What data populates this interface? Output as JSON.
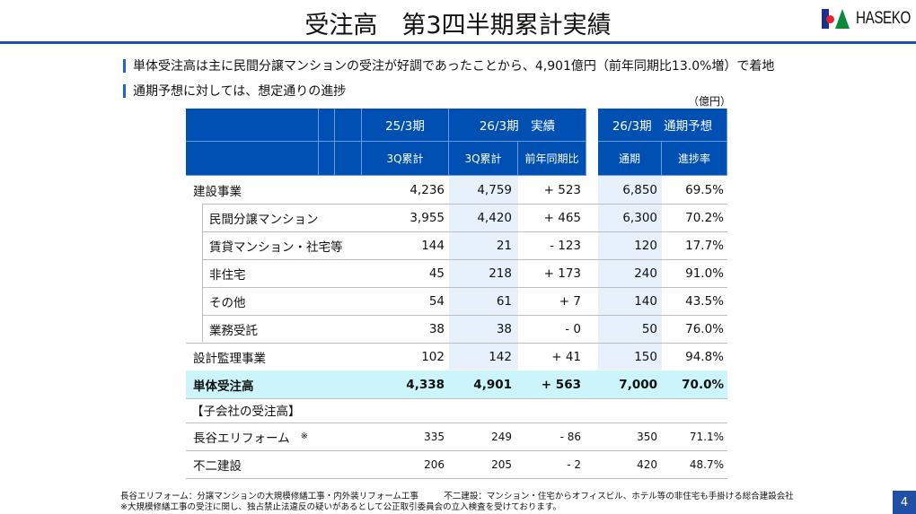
{
  "title": "受注高　第3四半期累計実績",
  "logo": {
    "text": "HASEKO"
  },
  "bullets": [
    "単体受注高は主に民間分譲マンションの受注が好調であったことから、4,901億円（前年同期比13.0%増）で着地",
    "通期予想に対しては、想定通りの進捗"
  ],
  "unit": "（億円）",
  "header": {
    "g1": "25/3期",
    "g2": "26/3期　実績",
    "g3": "26/3期　通期予想",
    "c1": "3Q累計",
    "c2": "3Q累計",
    "c3": "前年同期比",
    "c4": "通期",
    "c5": "進捗率"
  },
  "rows": [
    {
      "label": "建設事業",
      "v": [
        "4,236",
        "4,759",
        "+ 523",
        "6,850",
        "69.5%"
      ]
    },
    {
      "label": "民間分譲マンション",
      "v": [
        "3,955",
        "4,420",
        "+ 465",
        "6,300",
        "70.2%"
      ]
    },
    {
      "label": "賃貸マンション・社宅等",
      "v": [
        "144",
        "21",
        "- 123",
        "120",
        "17.7%"
      ]
    },
    {
      "label": "非住宅",
      "v": [
        "45",
        "218",
        "+ 173",
        "240",
        "91.0%"
      ]
    },
    {
      "label": "その他",
      "v": [
        "54",
        "61",
        "+ 7",
        "140",
        "43.5%"
      ]
    },
    {
      "label": "業務受託",
      "v": [
        "38",
        "38",
        "- 0",
        "50",
        "76.0%"
      ]
    },
    {
      "label": "設計監理事業",
      "v": [
        "102",
        "142",
        "+ 41",
        "150",
        "94.8%"
      ]
    },
    {
      "label": "単体受注高",
      "v": [
        "4,338",
        "4,901",
        "+ 563",
        "7,000",
        "70.0%"
      ]
    }
  ],
  "sub_heading": "【子会社の受注高】",
  "sub_rows": [
    {
      "label": "長谷エリフォーム",
      "note": "※",
      "v": [
        "335",
        "249",
        "- 86",
        "350",
        "71.1%"
      ]
    },
    {
      "label": "不二建設",
      "v": [
        "206",
        "205",
        "- 2",
        "420",
        "48.7%"
      ]
    }
  ],
  "footnotes": [
    "長谷エリフォーム：分譲マンションの大規模修繕工事・内外装リフォーム工事　　　不二建設：マンション・住宅からオフィスビル、ホテル等の非住宅も手掛ける総合建設会社",
    "※大規模修繕工事の受注に関し、独占禁止法違反の疑いがあるとして公正取引委員会の立入検査を受けております。"
  ],
  "page_number": "4",
  "colors": {
    "header": "#0050b4",
    "total_row": "#ccf5fb",
    "highlight": "#e6f1fc"
  }
}
